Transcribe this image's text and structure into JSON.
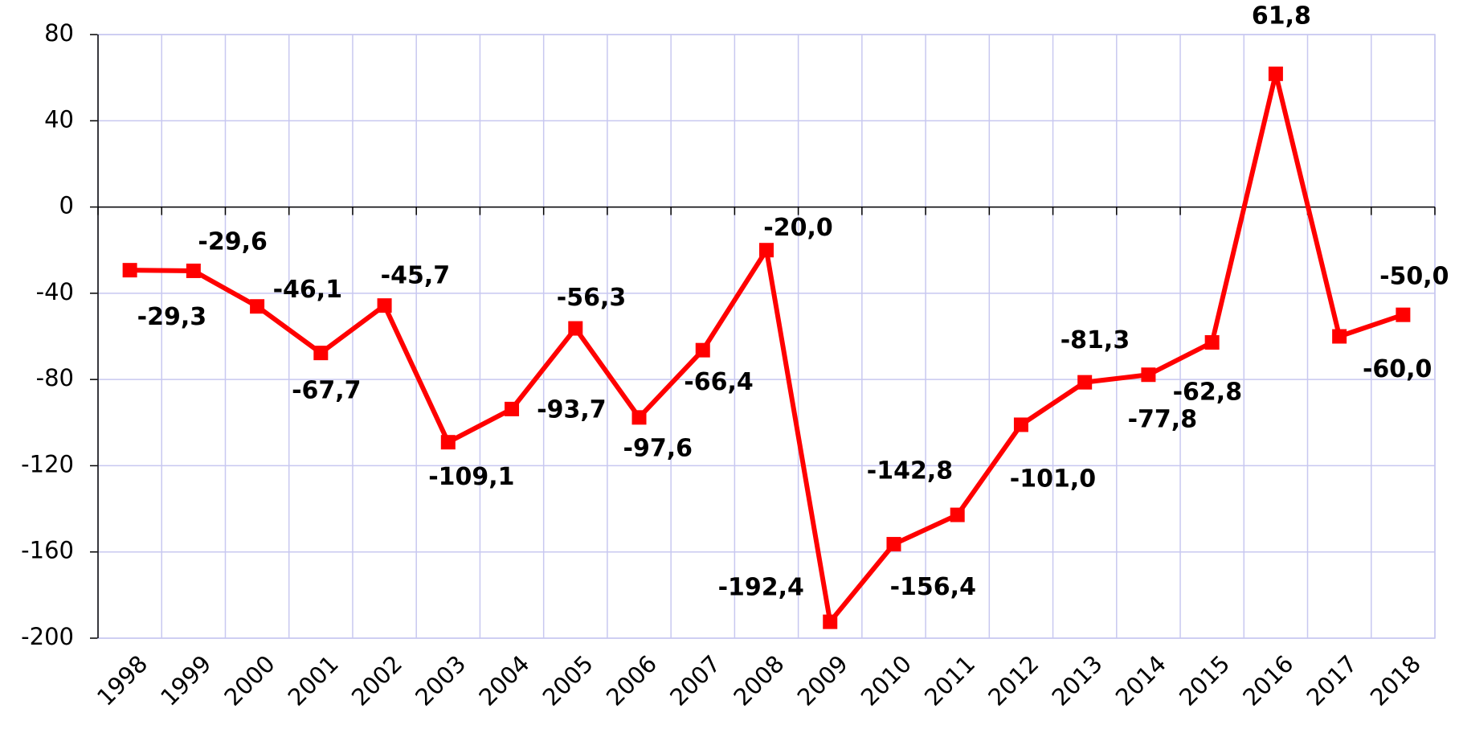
{
  "chart_data": {
    "type": "line",
    "categories": [
      "1998",
      "1999",
      "2000",
      "2001",
      "2002",
      "2003",
      "2004",
      "2005",
      "2006",
      "2007",
      "2008",
      "2009",
      "2010",
      "2011",
      "2012",
      "2013",
      "2014",
      "2015",
      "2016",
      "2017",
      "2018"
    ],
    "series": [
      {
        "color": "#ff0000",
        "values": [
          -29.3,
          -29.6,
          -46.1,
          -67.7,
          -45.7,
          -109.1,
          -93.7,
          -56.3,
          -97.6,
          -66.4,
          -20.0,
          -192.4,
          -156.4,
          -142.8,
          -101.0,
          -81.3,
          -77.8,
          -62.8,
          61.8,
          -60.0,
          -50.0
        ],
        "value_labels": [
          "-29,3",
          "-29,6",
          "-46,1",
          "-67,7",
          "-45,7",
          "-109,1",
          "-93,7",
          "-56,3",
          "-97,6",
          "-66,4",
          "-20,0",
          "-192,4",
          "-156,4",
          "-142,8",
          "-101,0",
          "-81,3",
          "-77,8",
          "-62,8",
          "61,8",
          "-60,0",
          "-50,0"
        ]
      }
    ],
    "ylim": [
      -200,
      80
    ],
    "yticks": [
      80,
      40,
      0,
      -40,
      -80,
      -120,
      -160,
      -200
    ],
    "grid": true,
    "grid_color": "#c8c8f0"
  }
}
